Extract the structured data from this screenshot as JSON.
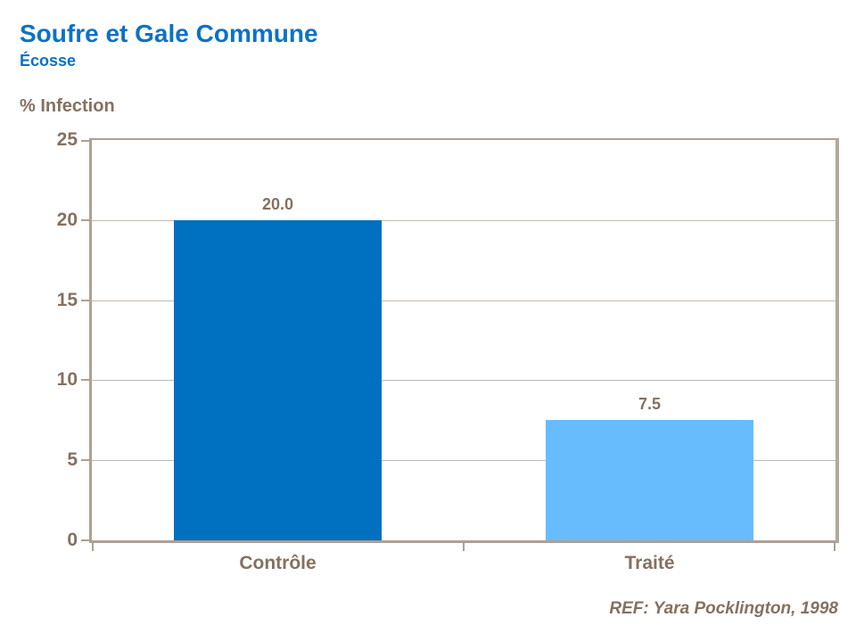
{
  "header": {
    "title": "Soufre et Gale Commune",
    "subtitle": "Écosse"
  },
  "chart_data": {
    "type": "bar",
    "title": "Soufre et Gale Commune",
    "subtitle": "Écosse",
    "xlabel": "",
    "ylabel": "% Infection",
    "categories": [
      "Contrôle",
      "Traité"
    ],
    "values": [
      20.0,
      7.5
    ],
    "value_labels": [
      "20.0",
      "7.5"
    ],
    "bar_colors": [
      "#0070c0",
      "#66bcfc"
    ],
    "ylim": [
      0,
      25
    ],
    "yticks": [
      0,
      5,
      10,
      15,
      20,
      25
    ],
    "grid": true,
    "legend_position": "none"
  },
  "footer": {
    "reference": "REF: Yara Pocklington, 1998"
  },
  "colors": {
    "title_blue": "#0b72c5",
    "text_brown": "#847160",
    "axis": "#ada093",
    "gridline": "#c3bab0",
    "bar_dark": "#0070c0",
    "bar_light": "#66bcfc",
    "background": "#ffffff"
  }
}
